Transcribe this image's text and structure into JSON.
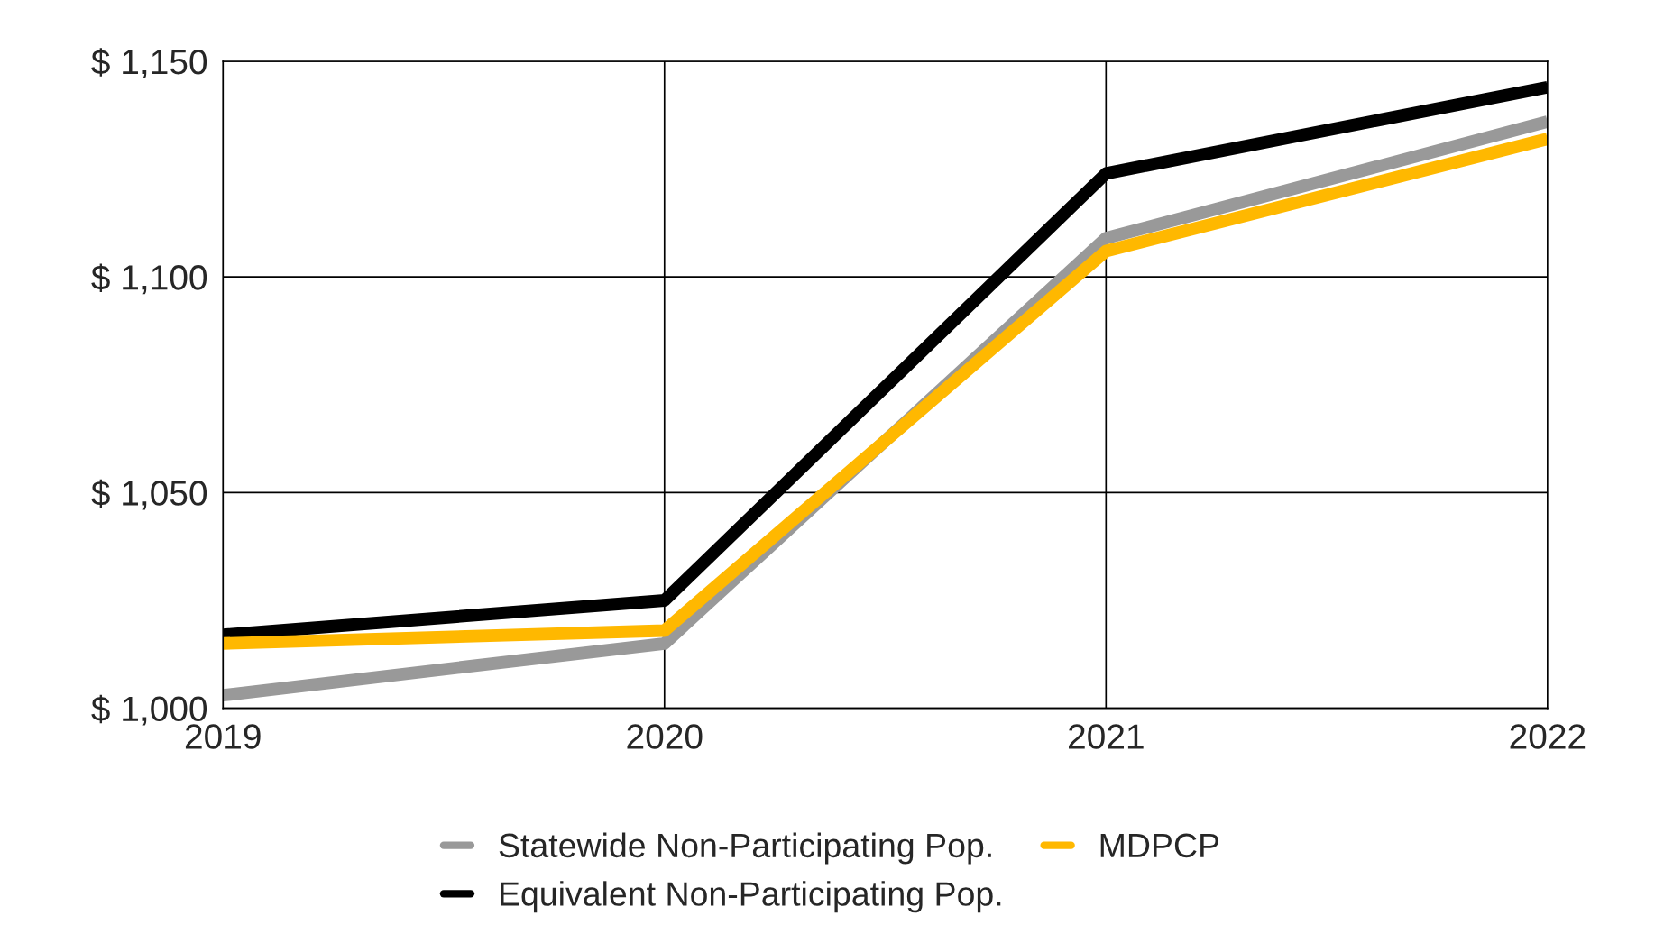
{
  "chart_data": {
    "type": "line",
    "categories": [
      "2019",
      "2020",
      "2021",
      "2022"
    ],
    "series": [
      {
        "name": "Statewide Non-Participating Pop.",
        "color": "#999999",
        "values": [
          1003,
          1015,
          1109,
          1136
        ]
      },
      {
        "name": "Equivalent Non-Participating Pop.",
        "color": "#000000",
        "values": [
          1017,
          1025,
          1124,
          1144
        ]
      },
      {
        "name": "MDPCP",
        "color": "#ffb800",
        "values": [
          1015,
          1018,
          1106,
          1132
        ]
      }
    ],
    "ylim": [
      1000,
      1150
    ],
    "yticks": [
      {
        "value": 1000,
        "label": "$ 1,000"
      },
      {
        "value": 1050,
        "label": "$ 1,050"
      },
      {
        "value": 1100,
        "label": "$ 1,100"
      },
      {
        "value": 1150,
        "label": "$ 1,150"
      }
    ],
    "grid": true,
    "legend": "bottom",
    "marker": "none",
    "line_style": "solid"
  }
}
